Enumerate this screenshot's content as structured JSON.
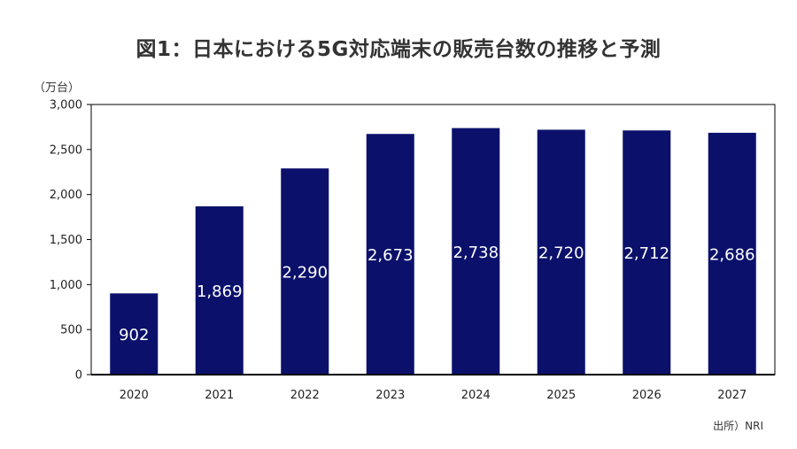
{
  "chart_data": {
    "type": "bar",
    "title": "図1：日本における5G対応端末の販売台数の推移と予測",
    "unit_label": "（万台）",
    "source": "出所）NRI",
    "categories": [
      "2020",
      "2021",
      "2022",
      "2023",
      "2024",
      "2025",
      "2026",
      "2027"
    ],
    "values": [
      902,
      1869,
      2290,
      2673,
      2738,
      2720,
      2712,
      2686
    ],
    "data_labels": [
      "902",
      "1,869",
      "2,290",
      "2,673",
      "2,738",
      "2,720",
      "2,712",
      "2,686"
    ],
    "yticks": [
      0,
      500,
      1000,
      1500,
      2000,
      2500,
      3000
    ],
    "ytick_labels": [
      "0",
      "500",
      "1,000",
      "1,500",
      "2,000",
      "2,500",
      "3,000"
    ],
    "ylim": [
      0,
      3000
    ],
    "grid": false,
    "bar_color": "#0b116b"
  }
}
